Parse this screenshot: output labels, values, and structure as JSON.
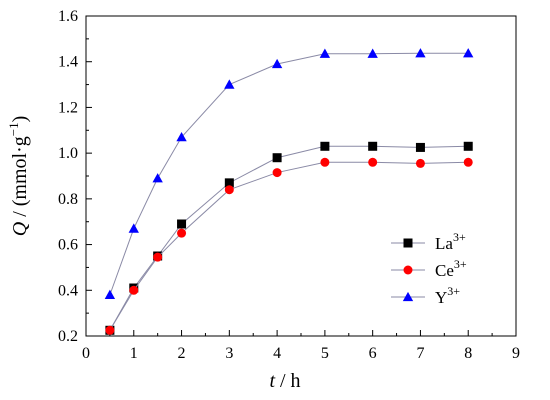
{
  "chart_data": {
    "type": "line",
    "title": "",
    "xlabel": {
      "var": "t",
      "rest": " / h"
    },
    "ylabel": {
      "var": "Q",
      "rest": " / (mmol·g",
      "sup": "−1",
      "close": ")"
    },
    "xlim": [
      0,
      9
    ],
    "ylim": [
      0.2,
      1.6
    ],
    "xticks": [
      "0",
      "1",
      "2",
      "3",
      "4",
      "5",
      "6",
      "7",
      "8",
      "9"
    ],
    "xtick_values": [
      0,
      1,
      2,
      3,
      4,
      5,
      6,
      7,
      8,
      9
    ],
    "yticks": [
      "0.2",
      "0.4",
      "0.6",
      "0.8",
      "1.0",
      "1.2",
      "1.4",
      "1.6"
    ],
    "ytick_values": [
      0.2,
      0.4,
      0.6,
      0.8,
      1.0,
      1.2,
      1.4,
      1.6
    ],
    "grid": false,
    "legend_position": "center-right",
    "x": [
      0.5,
      1,
      1.5,
      2,
      3,
      4,
      5,
      6,
      7,
      8
    ],
    "series": [
      {
        "name": "La",
        "sup": "3+",
        "marker": "square",
        "color": "#000000",
        "values": [
          0.225,
          0.41,
          0.55,
          0.69,
          0.87,
          0.98,
          1.03,
          1.03,
          1.025,
          1.03
        ]
      },
      {
        "name": "Ce",
        "sup": "3+",
        "marker": "circle",
        "color": "#ff0000",
        "values": [
          0.225,
          0.4,
          0.545,
          0.65,
          0.84,
          0.915,
          0.96,
          0.96,
          0.955,
          0.96
        ]
      },
      {
        "name": "Y",
        "sup": "3+",
        "marker": "triangle",
        "color": "#0000ff",
        "values": [
          0.38,
          0.67,
          0.89,
          1.07,
          1.3,
          1.39,
          1.435,
          1.435,
          1.437,
          1.437
        ]
      }
    ],
    "line_color": "#8a8aa6"
  }
}
